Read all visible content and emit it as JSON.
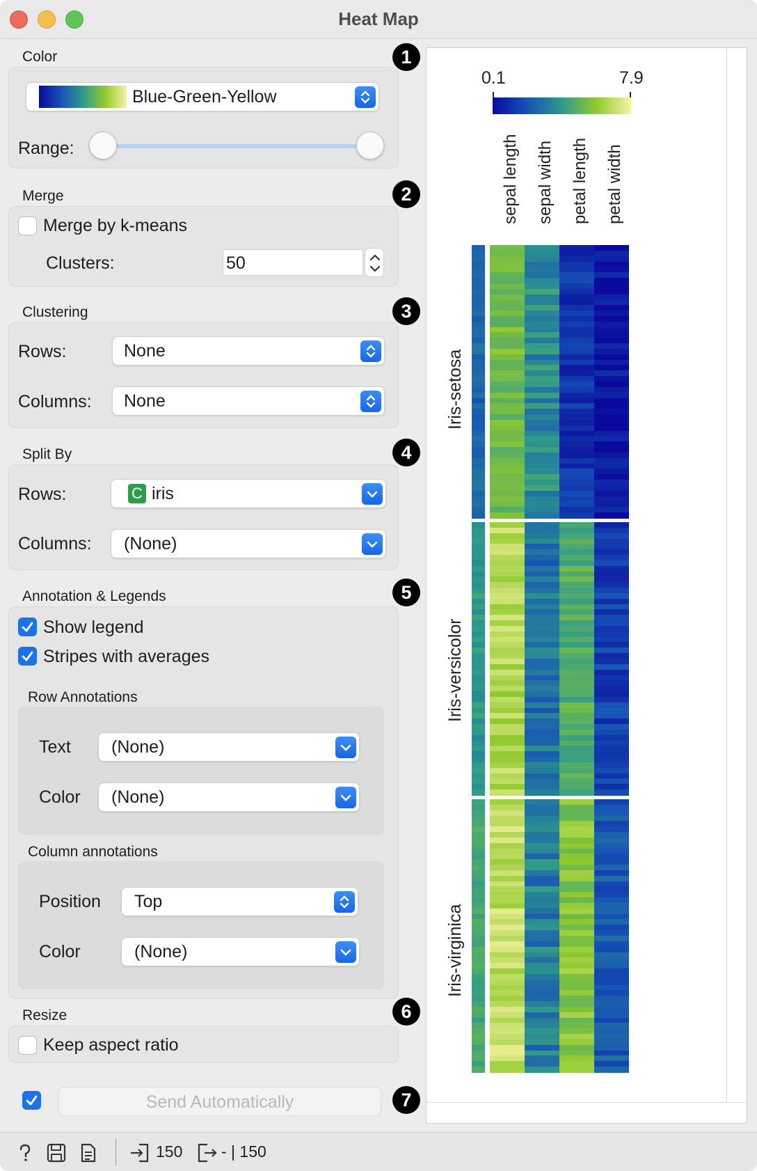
{
  "window": {
    "title": "Heat Map"
  },
  "color_section": {
    "title": "Color",
    "palette_name": "Blue-Green-Yellow",
    "range_label": "Range:",
    "range_low_fraction": 0.0,
    "range_high_fraction": 1.0,
    "badge": "1"
  },
  "merge_section": {
    "title": "Merge",
    "kmeans_label": "Merge by k-means",
    "kmeans_checked": false,
    "clusters_label": "Clusters:",
    "clusters_value": "50",
    "badge": "2"
  },
  "clustering_section": {
    "title": "Clustering",
    "rows_label": "Rows:",
    "rows_value": "None",
    "columns_label": "Columns:",
    "columns_value": "None",
    "badge": "3"
  },
  "split_section": {
    "title": "Split By",
    "rows_label": "Rows:",
    "rows_badge": "C",
    "rows_value": "iris",
    "columns_label": "Columns:",
    "columns_value": "(None)",
    "badge": "4"
  },
  "annotation_section": {
    "title": "Annotation & Legends",
    "show_legend_label": "Show legend",
    "show_legend_checked": true,
    "stripes_label": "Stripes with averages",
    "stripes_checked": true,
    "badge": "5",
    "row_annotations": {
      "title": "Row Annotations",
      "text_label": "Text",
      "text_value": "(None)",
      "color_label": "Color",
      "color_value": "(None)"
    },
    "column_annotations": {
      "title": "Column annotations",
      "position_label": "Position",
      "position_value": "Top",
      "color_label": "Color",
      "color_value": "(None)"
    }
  },
  "resize_section": {
    "title": "Resize",
    "keep_aspect_label": "Keep aspect ratio",
    "keep_aspect_checked": false,
    "badge": "6"
  },
  "send": {
    "auto_checked": true,
    "button_label": "Send Automatically",
    "badge": "7"
  },
  "heatmap": {
    "legend_min": "0.1",
    "legend_max": "7.9",
    "palette_colors": [
      "#0a0a9e",
      "#1653b6",
      "#2f9a8a",
      "#8fc92e",
      "#f7f3a2"
    ],
    "columns": [
      "sepal length",
      "sepal width",
      "petal length",
      "petal width"
    ],
    "groups": [
      {
        "name": "Iris-setosa",
        "rows": 50,
        "col_levels": [
          0.68,
          0.45,
          0.14,
          0.03
        ]
      },
      {
        "name": "Iris-versicolor",
        "rows": 50,
        "col_levels": [
          0.84,
          0.36,
          0.6,
          0.18
        ]
      },
      {
        "name": "Iris-virginica",
        "rows": 50,
        "col_levels": [
          0.87,
          0.4,
          0.73,
          0.27
        ]
      }
    ]
  },
  "status_bar": {
    "input_count": "150",
    "output_count": "- | 150"
  }
}
